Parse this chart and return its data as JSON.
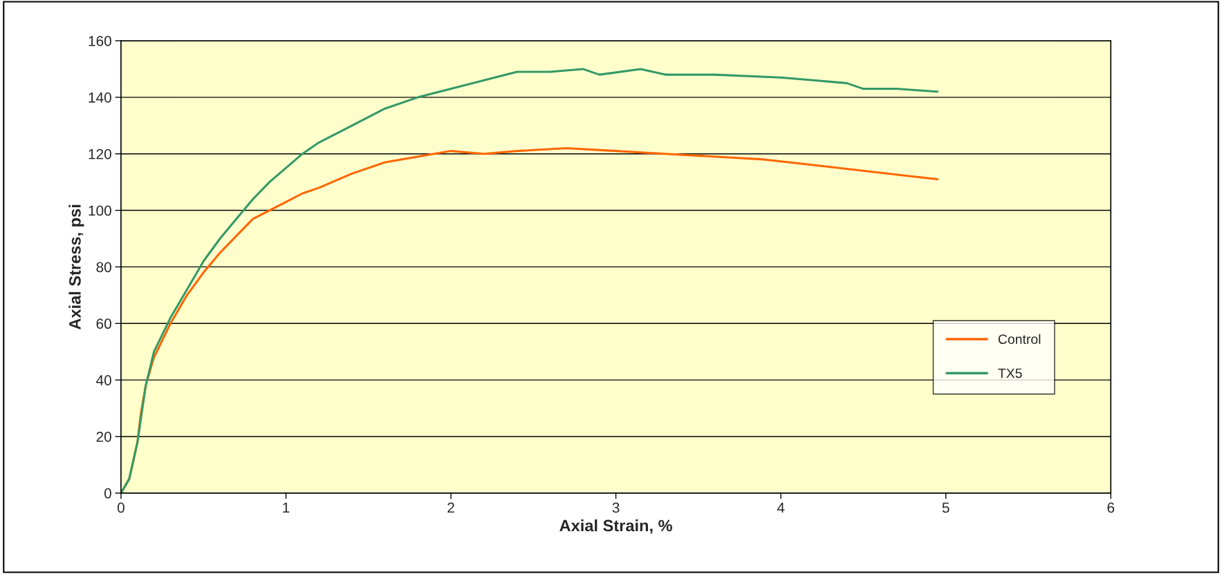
{
  "chart_data": {
    "type": "line",
    "xlabel": "Axial Strain, %",
    "ylabel": "Axial Stress, psi",
    "xlim": [
      0,
      6
    ],
    "xticks": [
      0,
      1,
      2,
      3,
      4,
      5,
      6
    ],
    "ylim": [
      0,
      160
    ],
    "yticks": [
      0,
      20,
      40,
      60,
      80,
      100,
      120,
      140,
      160
    ],
    "grid": "y",
    "legend": "right",
    "marker": "none",
    "line_style": "solid",
    "series": [
      {
        "name": "Control",
        "color": "#ff6600",
        "x": [
          0,
          0.05,
          0.1,
          0.12,
          0.15,
          0.2,
          0.3,
          0.4,
          0.5,
          0.6,
          0.7,
          0.8,
          0.9,
          1.0,
          1.1,
          1.2,
          1.4,
          1.6,
          1.8,
          2.0,
          2.2,
          2.4,
          2.7,
          3.0,
          3.3,
          3.6,
          3.9,
          4.2,
          4.5,
          4.8,
          4.95
        ],
        "values": [
          0,
          5,
          18,
          28,
          38,
          48,
          60,
          70,
          78,
          85,
          91,
          97,
          100,
          103,
          106,
          108,
          113,
          117,
          119,
          121,
          120,
          121,
          122,
          121,
          120,
          119,
          118,
          116,
          114,
          112,
          111
        ]
      },
      {
        "name": "TX5",
        "color": "#339966",
        "x": [
          0,
          0.05,
          0.1,
          0.15,
          0.2,
          0.3,
          0.4,
          0.5,
          0.6,
          0.7,
          0.8,
          0.9,
          1.0,
          1.1,
          1.2,
          1.4,
          1.6,
          1.8,
          2.0,
          2.2,
          2.4,
          2.6,
          2.8,
          2.9,
          3.15,
          3.3,
          3.6,
          4.0,
          4.2,
          4.4,
          4.5,
          4.7,
          4.95
        ],
        "values": [
          0,
          5,
          18,
          38,
          50,
          62,
          72,
          82,
          90,
          97,
          104,
          110,
          115,
          120,
          124,
          130,
          136,
          140,
          143,
          146,
          149,
          149,
          150,
          148,
          150,
          148,
          148,
          147,
          146,
          145,
          143,
          143,
          142
        ]
      }
    ]
  }
}
